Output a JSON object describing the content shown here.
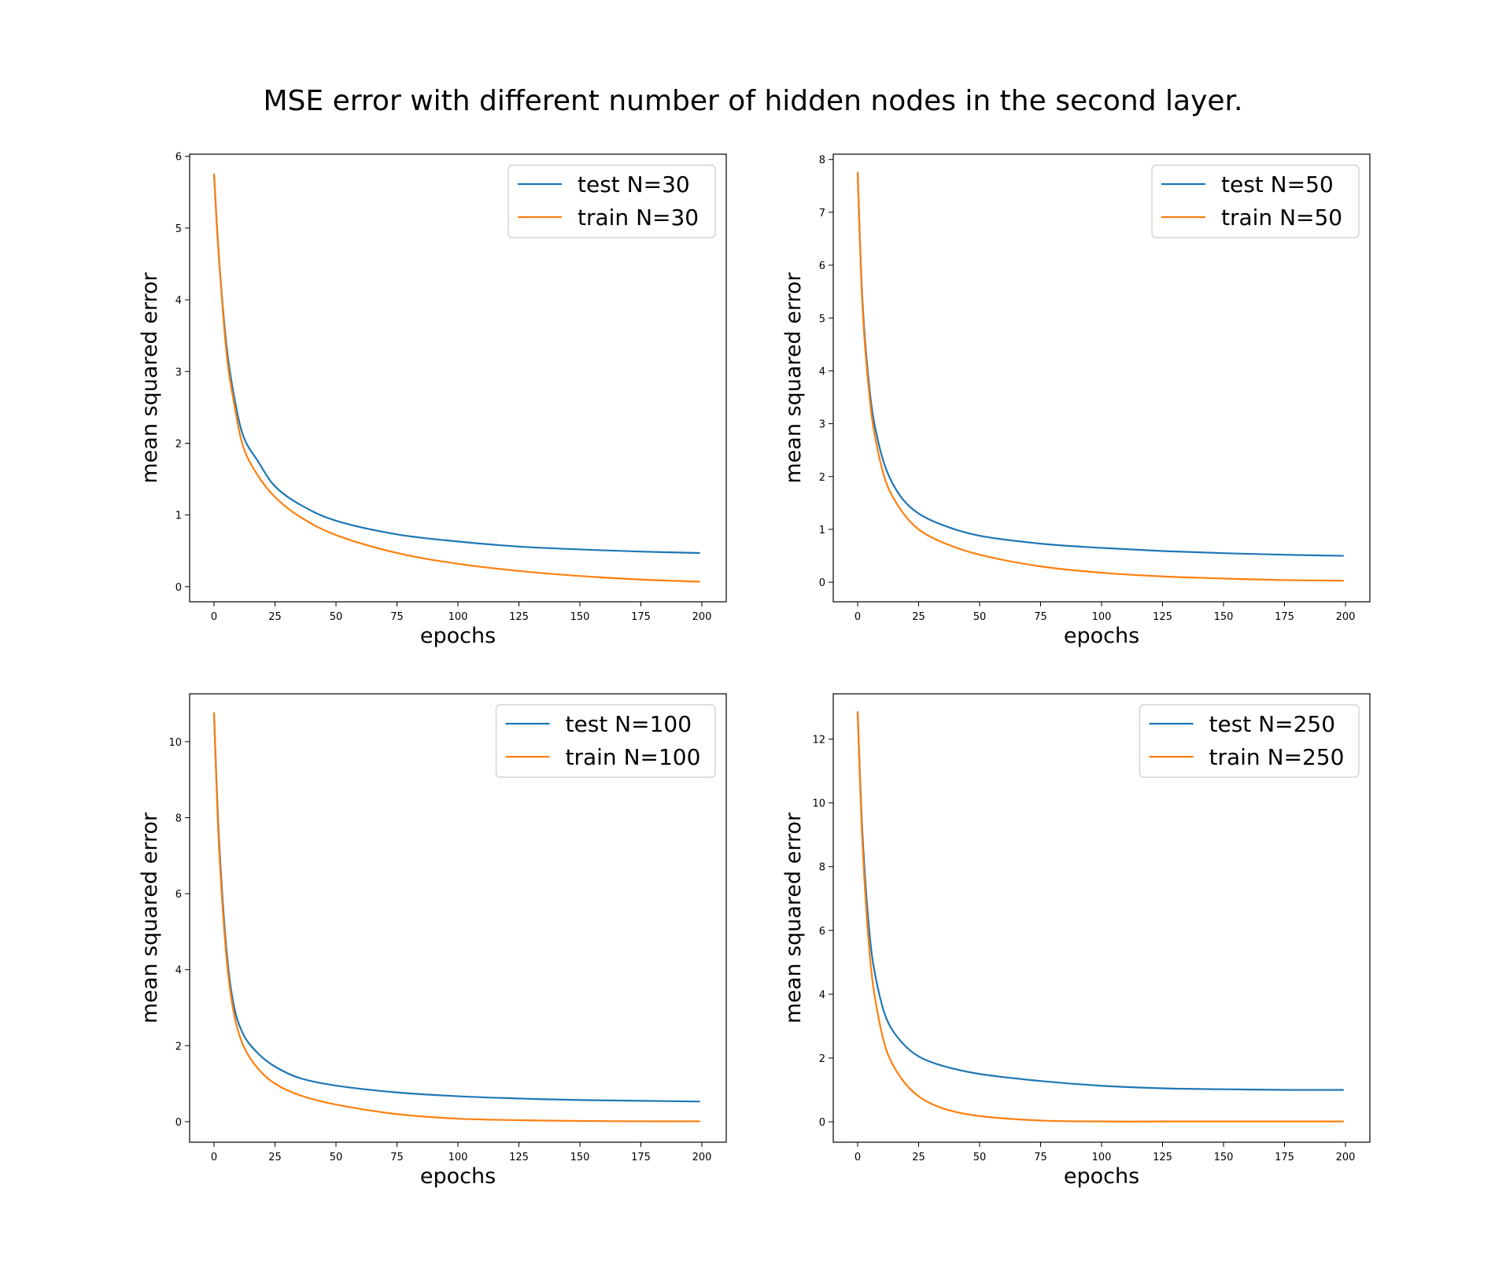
{
  "figure": {
    "title": "MSE error with different number of hidden nodes in the second layer."
  },
  "colors": {
    "test": "#1f77b4",
    "train": "#ff7f0e"
  },
  "chart_data": [
    {
      "type": "line",
      "xlabel": "epochs",
      "ylabel": "mean squared error",
      "xlim": [
        -10,
        210
      ],
      "ylim": [
        -0.21,
        6.03
      ],
      "xticks": [
        0,
        25,
        50,
        75,
        100,
        125,
        150,
        175,
        200
      ],
      "yticks": [
        0,
        1,
        2,
        3,
        4,
        5,
        6
      ],
      "legend": "top-right",
      "x": [
        0,
        2,
        5,
        8,
        12,
        18,
        25,
        35,
        50,
        75,
        100,
        125,
        150,
        175,
        199
      ],
      "series": [
        {
          "name": "test N=30",
          "color": "#1f77b4",
          "values": [
            5.75,
            4.6,
            3.4,
            2.7,
            2.1,
            1.75,
            1.4,
            1.15,
            0.92,
            0.73,
            0.63,
            0.56,
            0.52,
            0.49,
            0.47
          ]
        },
        {
          "name": "train N=30",
          "color": "#ff7f0e",
          "values": [
            5.75,
            4.6,
            3.3,
            2.6,
            1.95,
            1.55,
            1.25,
            0.98,
            0.72,
            0.47,
            0.32,
            0.22,
            0.15,
            0.1,
            0.07
          ]
        }
      ]
    },
    {
      "type": "line",
      "xlabel": "epochs",
      "ylabel": "mean squared error",
      "xlim": [
        -10,
        210
      ],
      "ylim": [
        -0.37,
        8.1
      ],
      "xticks": [
        0,
        25,
        50,
        75,
        100,
        125,
        150,
        175,
        200
      ],
      "yticks": [
        0,
        1,
        2,
        3,
        4,
        5,
        6,
        7,
        8
      ],
      "legend": "top-right",
      "x": [
        0,
        2,
        5,
        8,
        12,
        18,
        25,
        35,
        50,
        75,
        100,
        125,
        150,
        175,
        199
      ],
      "series": [
        {
          "name": "test N=50",
          "color": "#1f77b4",
          "values": [
            7.75,
            5.3,
            3.6,
            2.75,
            2.1,
            1.6,
            1.3,
            1.08,
            0.88,
            0.73,
            0.65,
            0.59,
            0.55,
            0.52,
            0.5
          ]
        },
        {
          "name": "train N=50",
          "color": "#ff7f0e",
          "values": [
            7.75,
            5.2,
            3.45,
            2.55,
            1.85,
            1.35,
            1.0,
            0.75,
            0.52,
            0.3,
            0.18,
            0.11,
            0.07,
            0.04,
            0.03
          ]
        }
      ]
    },
    {
      "type": "line",
      "xlabel": "epochs",
      "ylabel": "mean squared error",
      "xlim": [
        -10,
        210
      ],
      "ylim": [
        -0.54,
        11.26
      ],
      "xticks": [
        0,
        25,
        50,
        75,
        100,
        125,
        150,
        175,
        200
      ],
      "yticks": [
        0,
        2,
        4,
        6,
        8,
        10
      ],
      "legend": "top-right",
      "x": [
        0,
        2,
        5,
        8,
        12,
        18,
        25,
        35,
        50,
        75,
        100,
        125,
        150,
        175,
        199
      ],
      "series": [
        {
          "name": "test N=100",
          "color": "#1f77b4",
          "values": [
            10.75,
            7.5,
            4.6,
            3.1,
            2.3,
            1.8,
            1.45,
            1.15,
            0.95,
            0.77,
            0.67,
            0.61,
            0.57,
            0.55,
            0.53
          ]
        },
        {
          "name": "train N=100",
          "color": "#ff7f0e",
          "values": [
            10.75,
            7.3,
            4.4,
            2.9,
            2.0,
            1.4,
            1.0,
            0.7,
            0.45,
            0.2,
            0.08,
            0.04,
            0.02,
            0.01,
            0.01
          ]
        }
      ]
    },
    {
      "type": "line",
      "xlabel": "epochs",
      "ylabel": "mean squared error",
      "xlim": [
        -10,
        210
      ],
      "ylim": [
        -0.64,
        13.42
      ],
      "xticks": [
        0,
        25,
        50,
        75,
        100,
        125,
        150,
        175,
        200
      ],
      "yticks": [
        0,
        2,
        4,
        6,
        8,
        10,
        12
      ],
      "legend": "top-right",
      "x": [
        0,
        2,
        5,
        8,
        12,
        18,
        25,
        35,
        50,
        75,
        100,
        125,
        150,
        175,
        199
      ],
      "series": [
        {
          "name": "test N=250",
          "color": "#1f77b4",
          "values": [
            12.85,
            9.0,
            5.8,
            4.3,
            3.2,
            2.5,
            2.05,
            1.75,
            1.5,
            1.28,
            1.13,
            1.05,
            1.02,
            1.0,
            1.0
          ]
        },
        {
          "name": "train N=250",
          "color": "#ff7f0e",
          "values": [
            12.85,
            8.7,
            5.2,
            3.5,
            2.2,
            1.35,
            0.8,
            0.42,
            0.18,
            0.04,
            0.01,
            0.01,
            0.01,
            0.01,
            0.01
          ]
        }
      ]
    }
  ]
}
